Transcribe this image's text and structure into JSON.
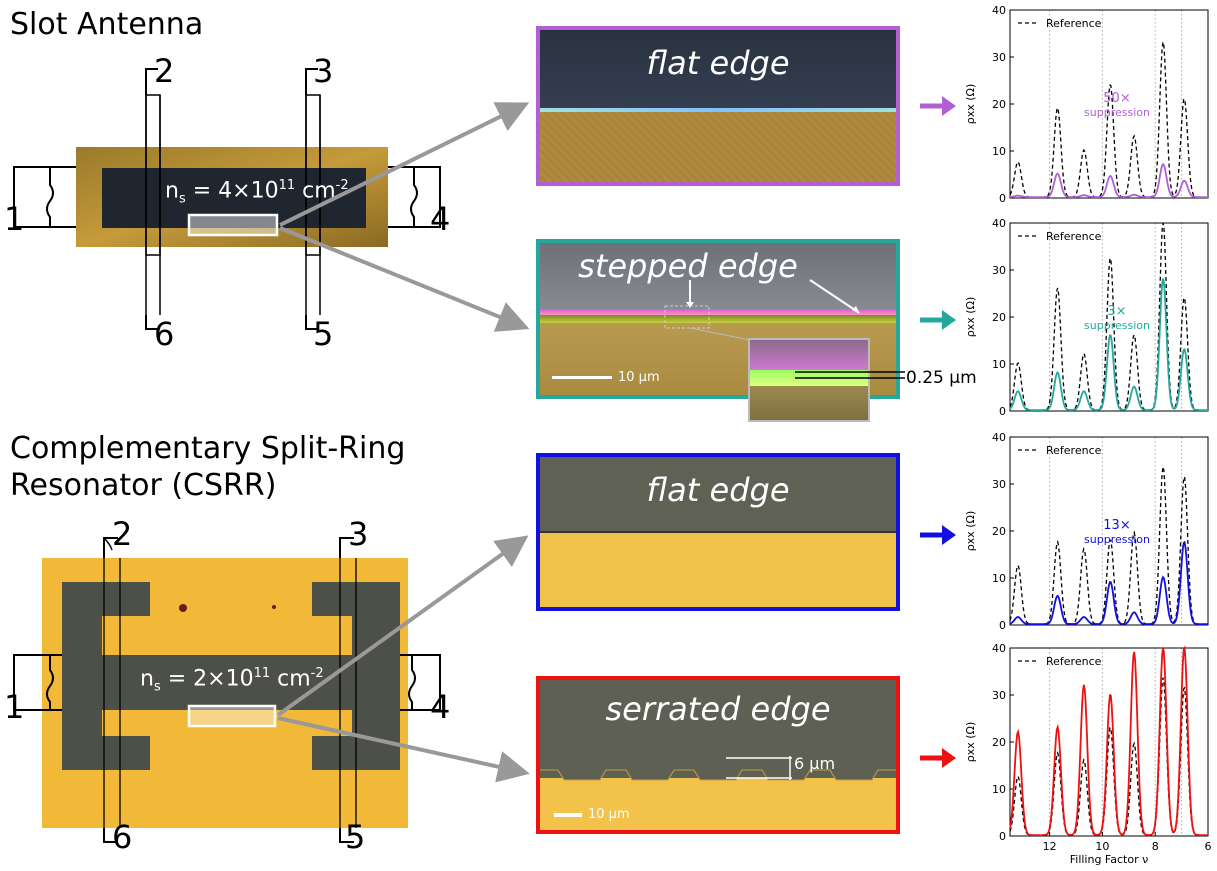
{
  "slot": {
    "title": "Slot Antenna",
    "density_prefix": "n",
    "density_sub": "s",
    "density_main": " = 4×10",
    "density_exp": "11",
    "density_unit": " cm",
    "density_unit_exp": "-2",
    "terminals": [
      "1",
      "2",
      "3",
      "4",
      "5",
      "6"
    ]
  },
  "csrr": {
    "title_line1": "Complementary Split-Ring",
    "title_line2": "Resonator (CSRR)",
    "density_prefix": "n",
    "density_sub": "s",
    "density_main": " = 2×10",
    "density_exp": "11",
    "density_unit": " cm",
    "density_unit_exp": "-2",
    "terminals": [
      "1",
      "2",
      "3",
      "4",
      "5",
      "6"
    ]
  },
  "photos": [
    {
      "label": "flat edge",
      "border": "#b25fd6"
    },
    {
      "label": "stepped edge",
      "border": "#24a89e",
      "scale": "10 μm",
      "step": "0.25 μm"
    },
    {
      "label": "flat edge",
      "border": "#1010e0"
    },
    {
      "label": "serrated edge",
      "border": "#ee1111",
      "scale": "10 μm",
      "period": "6 μm"
    }
  ],
  "chart_data": [
    {
      "type": "line",
      "ylabel": "ρxx (Ω)",
      "ylim": [
        0,
        40
      ],
      "xlim": [
        13.5,
        6
      ],
      "yticks": [
        0,
        10,
        20,
        30,
        40
      ],
      "legend": "Reference",
      "annotation": [
        "50×",
        "suppression"
      ],
      "series": [
        {
          "name": "Reference",
          "color": "#000000",
          "style": "dashed",
          "peaks": [
            [
              13.2,
              7.5
            ],
            [
              11.7,
              19
            ],
            [
              10.7,
              10
            ],
            [
              9.7,
              24
            ],
            [
              8.8,
              13
            ],
            [
              7.7,
              33
            ],
            [
              6.9,
              21
            ]
          ]
        },
        {
          "color": "#b25fd6",
          "style": "solid",
          "peaks": [
            [
              13.2,
              0.3
            ],
            [
              11.7,
              5
            ],
            [
              10.7,
              0.4
            ],
            [
              9.7,
              4.5
            ],
            [
              8.8,
              0.5
            ],
            [
              7.7,
              7
            ],
            [
              6.9,
              3.5
            ]
          ]
        }
      ],
      "vlines": [
        12,
        10,
        8,
        7
      ]
    },
    {
      "type": "line",
      "ylabel": "ρxx (Ω)",
      "ylim": [
        0,
        40
      ],
      "xlim": [
        13.5,
        6
      ],
      "yticks": [
        0,
        10,
        20,
        30,
        40
      ],
      "legend": "Reference",
      "annotation": [
        "3×",
        "suppression"
      ],
      "series": [
        {
          "name": "Reference",
          "color": "#000000",
          "style": "dashed",
          "peaks": [
            [
              13.2,
              10
            ],
            [
              11.7,
              26
            ],
            [
              10.7,
              12
            ],
            [
              9.7,
              32.5
            ],
            [
              8.8,
              16
            ],
            [
              7.7,
              40
            ],
            [
              6.9,
              24
            ]
          ]
        },
        {
          "color": "#24a89e",
          "style": "solid",
          "peaks": [
            [
              13.2,
              4
            ],
            [
              11.7,
              8
            ],
            [
              10.7,
              4
            ],
            [
              9.7,
              16
            ],
            [
              8.8,
              5
            ],
            [
              7.7,
              28
            ],
            [
              6.9,
              13
            ]
          ]
        }
      ],
      "vlines": [
        12,
        10,
        8,
        7
      ]
    },
    {
      "type": "line",
      "ylabel": "ρxx (Ω)",
      "ylim": [
        0,
        40
      ],
      "xlim": [
        13.5,
        6
      ],
      "yticks": [
        0,
        10,
        20,
        30,
        40
      ],
      "legend": "Reference",
      "annotation": [
        "13×",
        "suppression"
      ],
      "series": [
        {
          "name": "Reference",
          "color": "#000000",
          "style": "dashed",
          "peaks": [
            [
              13.2,
              12.5
            ],
            [
              11.7,
              17.5
            ],
            [
              10.7,
              16
            ],
            [
              9.7,
              18
            ],
            [
              8.8,
              19.5
            ],
            [
              7.7,
              33.5
            ],
            [
              6.9,
              31.5
            ]
          ]
        },
        {
          "color": "#1010e0",
          "style": "solid",
          "peaks": [
            [
              13.2,
              1.5
            ],
            [
              11.7,
              6
            ],
            [
              10.7,
              1.5
            ],
            [
              9.7,
              9
            ],
            [
              8.8,
              2.5
            ],
            [
              7.7,
              10
            ],
            [
              6.9,
              17.5
            ]
          ]
        }
      ],
      "vlines": [
        12,
        10,
        8,
        7
      ]
    },
    {
      "type": "line",
      "ylabel": "ρxx (Ω)",
      "xlabel": "Filling Factor ν",
      "ylim": [
        0,
        40
      ],
      "xlim": [
        13.5,
        6
      ],
      "yticks": [
        0,
        10,
        20,
        30,
        40
      ],
      "xticks": [
        12,
        10,
        8,
        6
      ],
      "legend": "Reference",
      "series": [
        {
          "name": "Reference",
          "color": "#000000",
          "style": "dashed",
          "peaks": [
            [
              13.2,
              12.5
            ],
            [
              11.7,
              17.5
            ],
            [
              10.7,
              16
            ],
            [
              9.7,
              23
            ],
            [
              8.8,
              19.5
            ],
            [
              7.7,
              33.5
            ],
            [
              6.9,
              31.5
            ]
          ]
        },
        {
          "color": "#ee1111",
          "style": "solid",
          "peaks": [
            [
              13.2,
              22
            ],
            [
              11.7,
              23
            ],
            [
              10.7,
              32
            ],
            [
              9.7,
              30
            ],
            [
              8.8,
              39
            ],
            [
              7.7,
              40
            ],
            [
              6.9,
              40
            ]
          ]
        }
      ],
      "vlines": [
        12,
        10,
        8,
        7
      ]
    }
  ]
}
